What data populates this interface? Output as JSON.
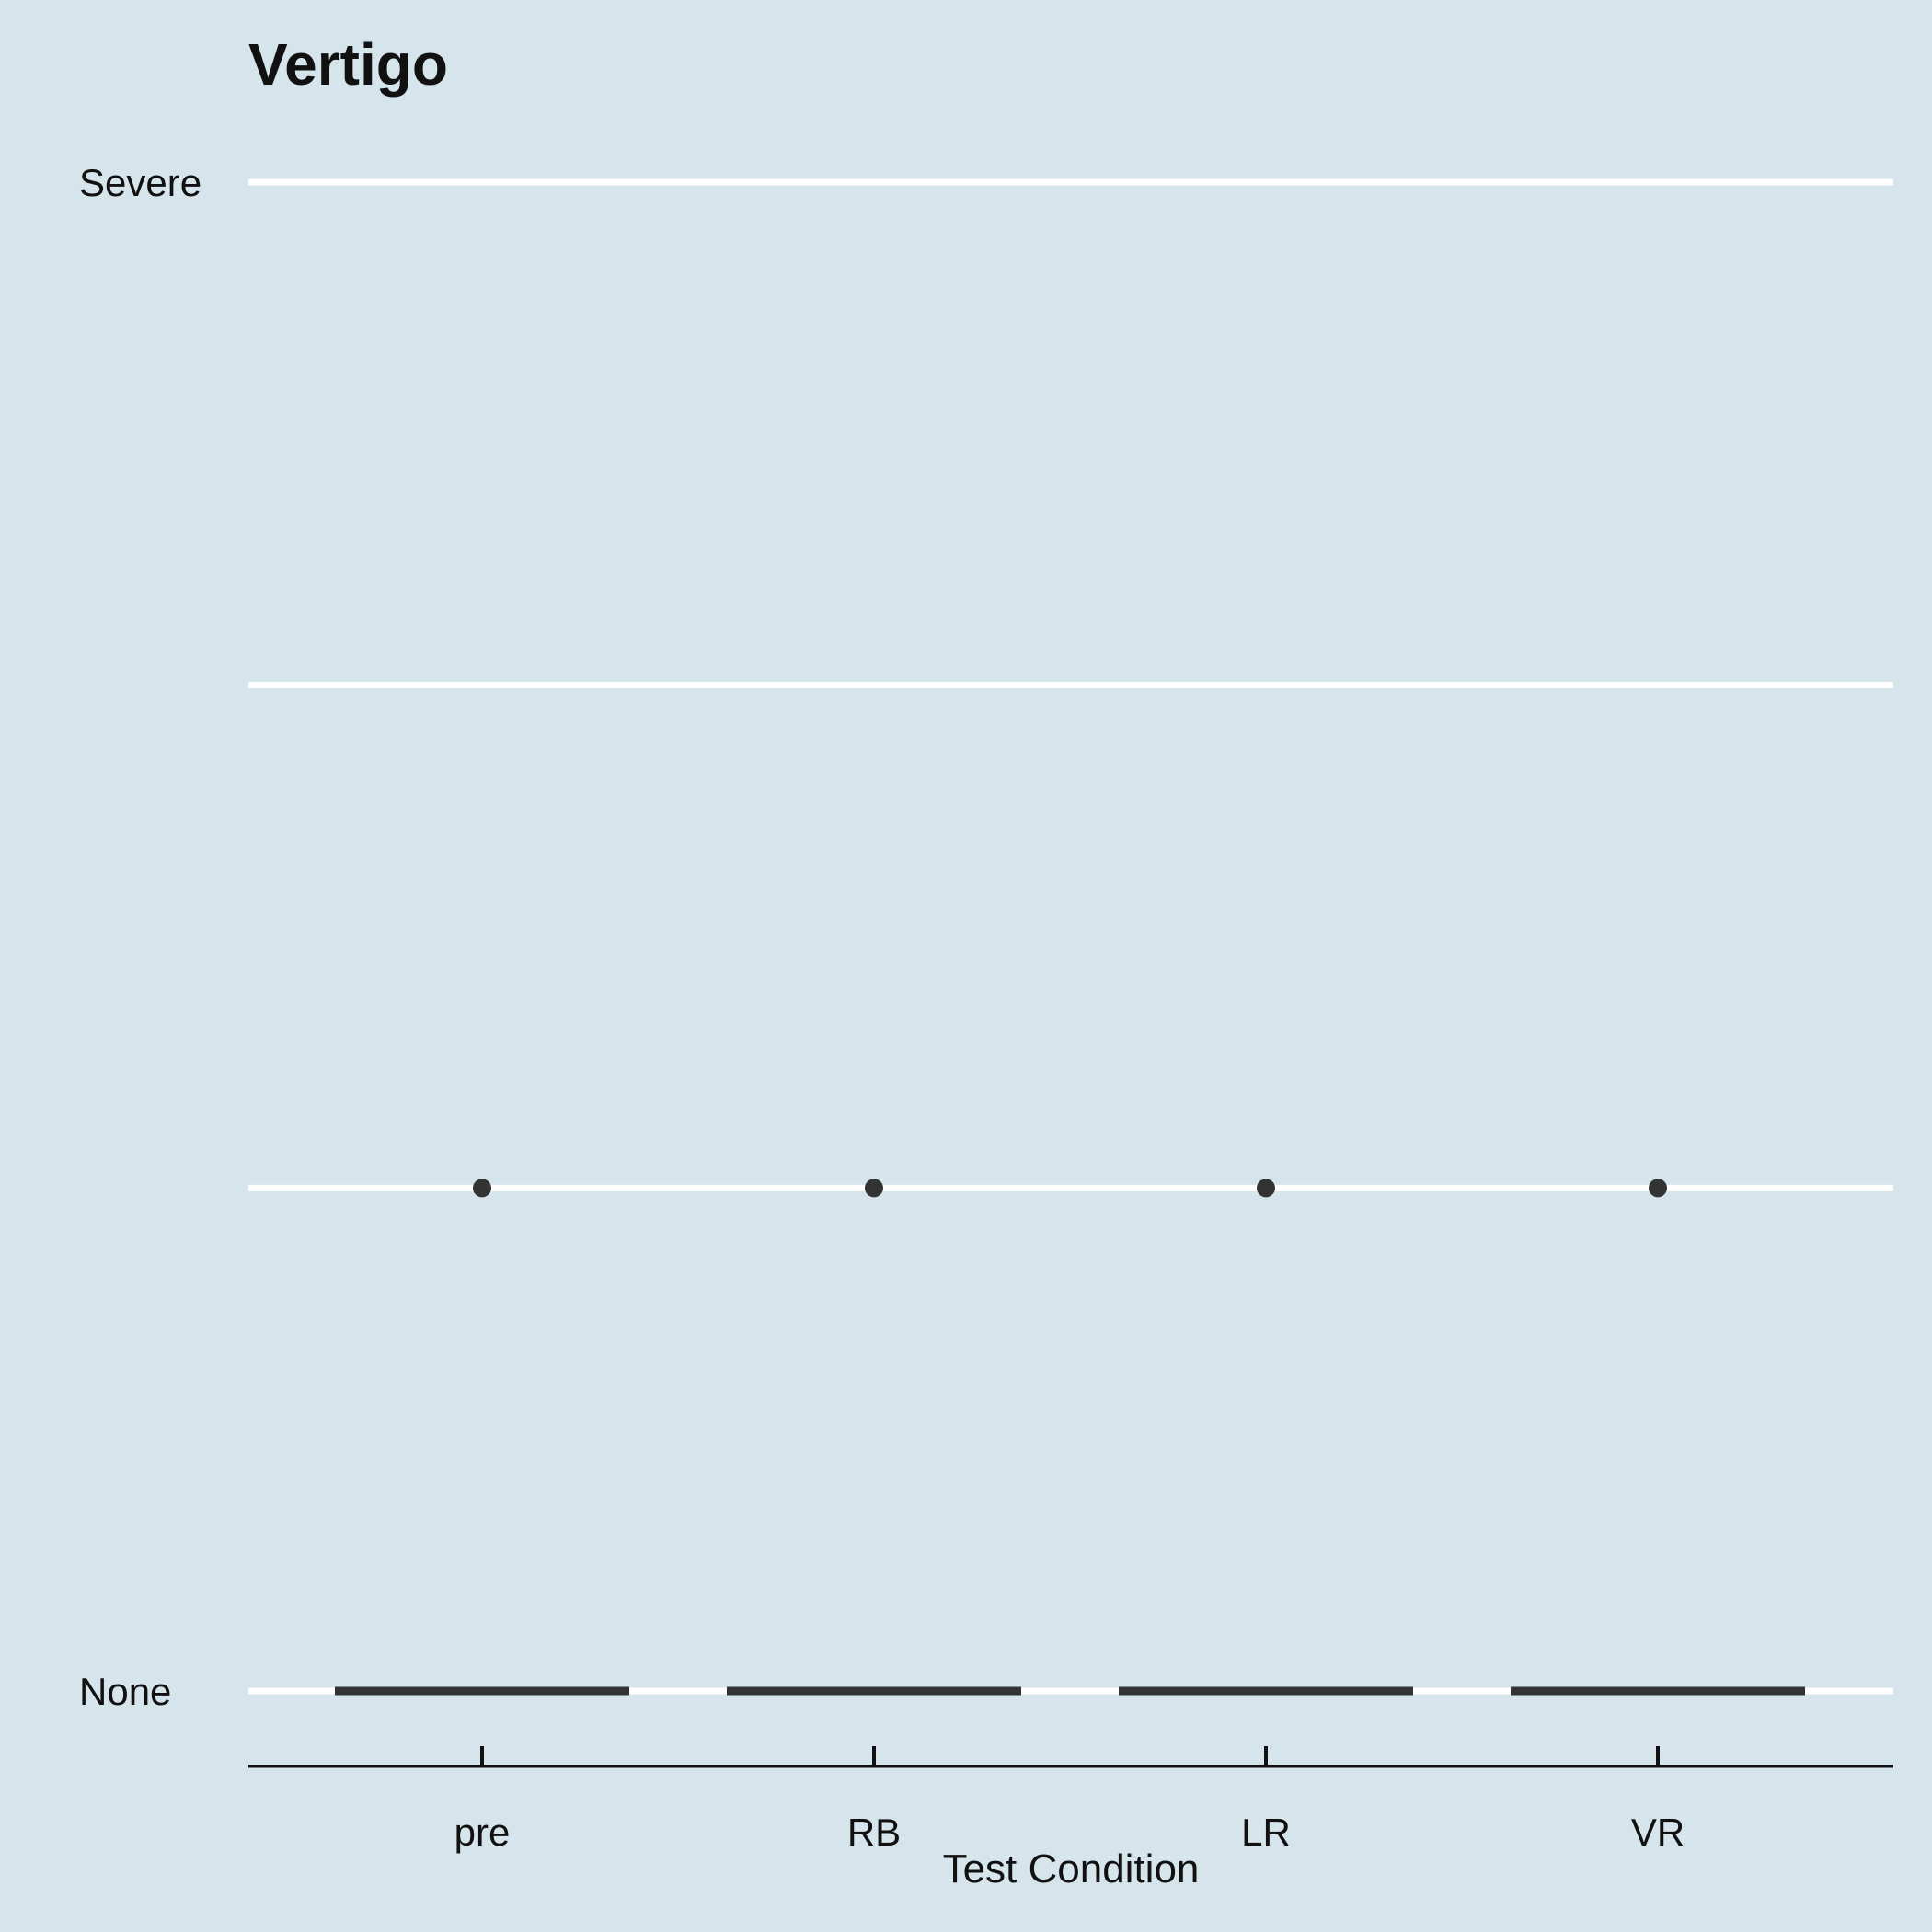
{
  "chart_data": {
    "type": "boxplot",
    "title": "Vertigo",
    "xlabel": "Test Condition",
    "ylabel": "",
    "categories": [
      "pre",
      "RB",
      "LR",
      "VR"
    ],
    "ylim": [
      0,
      3
    ],
    "y_ticks": [
      {
        "value": 3,
        "label": "Severe"
      },
      {
        "value": 0,
        "label": "None"
      }
    ],
    "gridlines_y": [
      0,
      1,
      2,
      3
    ],
    "grid": true,
    "legend": "none",
    "series": [
      {
        "values": [
          {
            "category": "pre",
            "median": 0,
            "q1": 0,
            "q3": 0,
            "outliers": [
              1
            ]
          },
          {
            "category": "RB",
            "median": 0,
            "q1": 0,
            "q3": 0,
            "outliers": [
              1
            ]
          },
          {
            "category": "LR",
            "median": 0,
            "q1": 0,
            "q3": 0,
            "outliers": [
              1
            ]
          },
          {
            "category": "VR",
            "median": 0,
            "q1": 0,
            "q3": 0,
            "outliers": [
              1
            ]
          }
        ]
      }
    ],
    "colors": {
      "background": "#d6e5ec",
      "grid": "#ffffff",
      "marks": "#333333",
      "text": "#111111"
    }
  }
}
